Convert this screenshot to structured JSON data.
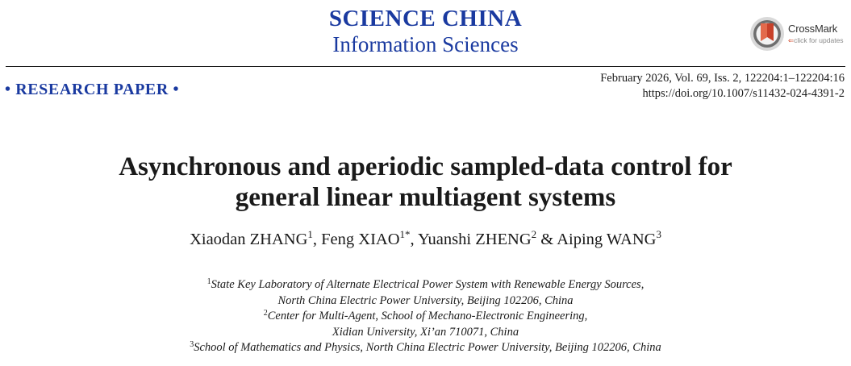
{
  "journal": {
    "name": "SCIENCE CHINA",
    "subtitle": "Information Sciences"
  },
  "crossmark": {
    "title": "CrossMark",
    "subtitle": "click for updates"
  },
  "paper_type": "• RESEARCH PAPER •",
  "meta": {
    "issue": "February 2026, Vol. 69, Iss. 2, 122204:1–122204:16",
    "doi": "https://doi.org/10.1007/s11432-024-4391-2"
  },
  "title": {
    "line1": "Asynchronous and aperiodic sampled-data control for",
    "line2": "general linear multiagent systems"
  },
  "authors": [
    {
      "name": "Xiaodan ZHANG",
      "mark": "1",
      "sep": ", "
    },
    {
      "name": "Feng XIAO",
      "mark": "1*",
      "sep": ", "
    },
    {
      "name": "Yuanshi ZHENG",
      "mark": "2",
      "sep": " & "
    },
    {
      "name": "Aiping WANG",
      "mark": "3",
      "sep": ""
    }
  ],
  "affiliations": [
    {
      "mark": "1",
      "line1": "State Key Laboratory of Alternate Electrical Power System with Renewable Energy Sources,",
      "line2": "North China Electric Power University, Beijing 102206, China"
    },
    {
      "mark": "2",
      "line1": "Center for Multi-Agent, School of Mechano-Electronic Engineering,",
      "line2": "Xidian University, Xi’an 710071, China"
    },
    {
      "mark": "3",
      "line1": "School of Mathematics and Physics, North China Electric Power University, Beijing 102206, China",
      "line2": ""
    }
  ],
  "colors": {
    "journal_blue": "#1a3aa0",
    "crossmark_red": "#c8412a"
  }
}
